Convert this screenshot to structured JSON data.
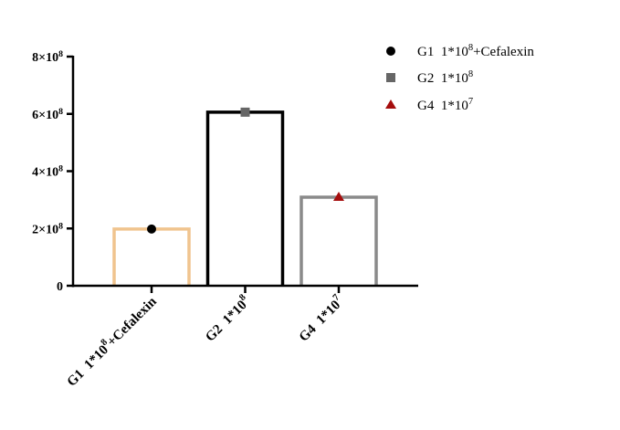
{
  "chart_data": {
    "type": "bar",
    "title": "",
    "xlabel": "",
    "ylabel": "",
    "ylim": [
      0,
      800000000
    ],
    "grid": false,
    "legend_position": "top-right",
    "yticks": [
      {
        "value": 0,
        "label": "0"
      },
      {
        "value": 200000000,
        "label": "2×10",
        "exp": "8"
      },
      {
        "value": 400000000,
        "label": "4×10",
        "exp": "8"
      },
      {
        "value": 600000000,
        "label": "6×10",
        "exp": "8"
      },
      {
        "value": 800000000,
        "label": "8×10",
        "exp": "8"
      }
    ],
    "categories": [
      {
        "base": "G1  1*10",
        "exp": "8",
        "suffix": "+Cefalexin"
      },
      {
        "base": "G2  1*10",
        "exp": "8",
        "suffix": ""
      },
      {
        "base": "G4  1*10",
        "exp": "7",
        "suffix": ""
      }
    ],
    "series": [
      {
        "name": "G1  1*10^8+Cefalexin",
        "legend": {
          "base": "G1  1*10",
          "exp": "8",
          "suffix": "+Cefalexin"
        },
        "value": 198000000,
        "bar_color": "#f0c48e",
        "marker": "circle",
        "marker_color": "#000000"
      },
      {
        "name": "G2  1*10^8",
        "legend": {
          "base": "G2  1*10",
          "exp": "8",
          "suffix": ""
        },
        "value": 606000000,
        "bar_color": "#000000",
        "marker": "square",
        "marker_color": "#666666"
      },
      {
        "name": "G4  1*10^7",
        "legend": {
          "base": "G4  1*10",
          "exp": "7",
          "suffix": ""
        },
        "value": 309000000,
        "bar_color": "#8a8a8a",
        "marker": "triangle",
        "marker_color": "#a50d0d"
      }
    ]
  }
}
